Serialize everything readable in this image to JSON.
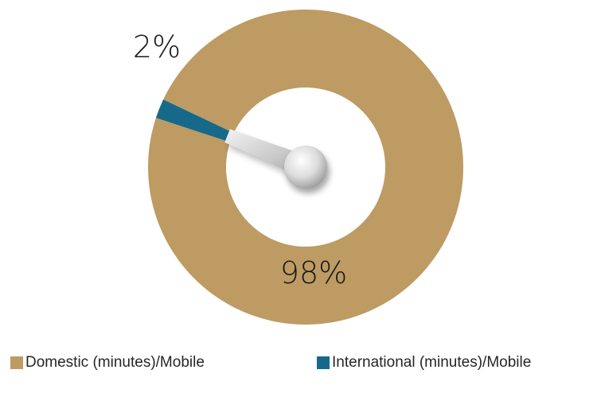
{
  "chart_data": {
    "type": "pie",
    "style": "donut",
    "series": [
      {
        "name": "Domestic (minutes)/Mobile",
        "value": 98,
        "label": "98%",
        "color": "#be9b63"
      },
      {
        "name": "International (minutes)/Mobile",
        "value": 2,
        "label": "2%",
        "color": "#17698a"
      }
    ],
    "legend_position": "bottom"
  }
}
